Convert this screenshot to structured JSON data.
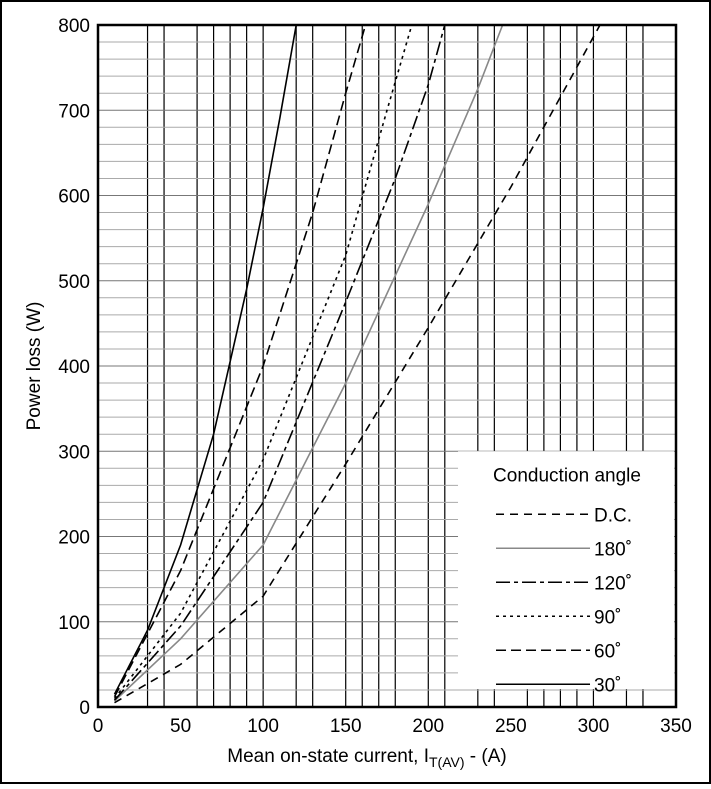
{
  "chart_data": {
    "type": "line",
    "title": "",
    "xlabel": "Mean on-state current, I",
    "xlabel_sub": "T(AV)",
    "xlabel_unit": " - (A)",
    "ylabel": "Power loss (W)",
    "xlim": [
      0,
      350
    ],
    "ylim": [
      0,
      800
    ],
    "xticks": [
      0,
      50,
      100,
      150,
      200,
      250,
      300,
      350
    ],
    "yticks": [
      0,
      100,
      200,
      300,
      400,
      500,
      600,
      700,
      800
    ],
    "grid": true,
    "legend": {
      "title": "Conduction angle",
      "placement": "bottom-right",
      "entries": [
        "D.C.",
        "180˚",
        "120˚",
        "90˚",
        "60˚",
        "30˚"
      ]
    },
    "series": [
      {
        "name": "D.C.",
        "dash": "8,6",
        "color": "#000000",
        "x": [
          10,
          50,
          100,
          150,
          200,
          250,
          304
        ],
        "y": [
          5,
          50,
          130,
          285,
          445,
          610,
          800
        ]
      },
      {
        "name": "180˚",
        "dash": "",
        "color": "#888888",
        "x": [
          10,
          50,
          100,
          150,
          200,
          230,
          245
        ],
        "y": [
          7,
          80,
          190,
          380,
          590,
          725,
          800
        ]
      },
      {
        "name": "120˚",
        "dash": "14,4,4,4",
        "color": "#000000",
        "x": [
          10,
          50,
          100,
          150,
          180,
          200,
          210
        ],
        "y": [
          8,
          95,
          240,
          475,
          620,
          730,
          800
        ]
      },
      {
        "name": "90˚",
        "dash": "3,4",
        "color": "#000000",
        "x": [
          10,
          50,
          100,
          150,
          175,
          190
        ],
        "y": [
          10,
          110,
          290,
          530,
          700,
          800
        ]
      },
      {
        "name": "60˚",
        "dash": "10,5",
        "color": "#000000",
        "x": [
          10,
          50,
          100,
          130,
          150,
          162
        ],
        "y": [
          12,
          160,
          400,
          580,
          720,
          800
        ]
      },
      {
        "name": "30˚",
        "dash": "",
        "color": "#000000",
        "x": [
          10,
          30,
          50,
          70,
          90,
          100,
          110,
          120
        ],
        "y": [
          15,
          90,
          190,
          320,
          490,
          585,
          690,
          800
        ]
      }
    ]
  }
}
